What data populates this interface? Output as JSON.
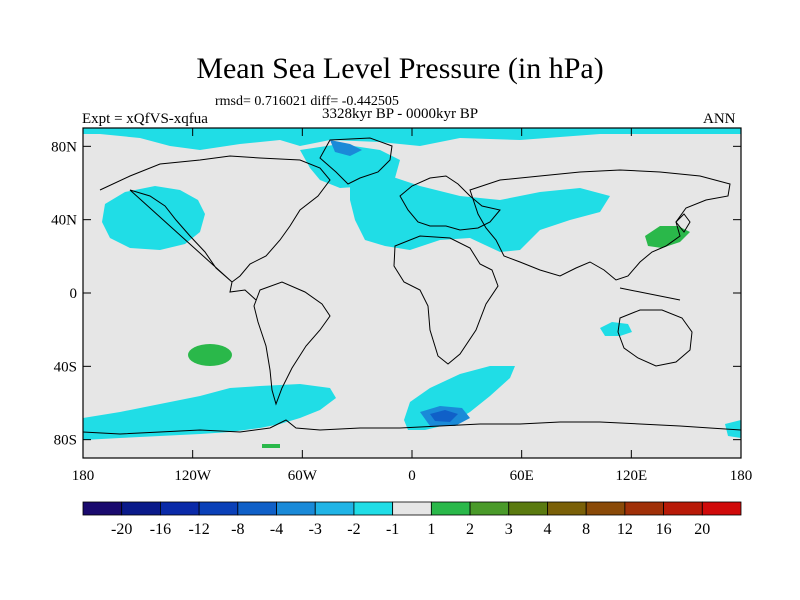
{
  "header": {
    "title": "Mean Sea Level Pressure (in hPa)",
    "stats": "rmsd= 0.716021 diff= -0.442505",
    "experiment": "Expt = xQfVS-xqfua",
    "period": "3328kyr BP - 0000kyr BP",
    "season": "ANN"
  },
  "axes": {
    "lat_labels": [
      "80N",
      "40N",
      "0",
      "40S",
      "80S"
    ],
    "lat_values": [
      80,
      40,
      0,
      -40,
      -80
    ],
    "lon_labels": [
      "180",
      "120W",
      "60W",
      "0",
      "60E",
      "120E",
      "180"
    ],
    "lon_values": [
      -180,
      -120,
      -60,
      0,
      60,
      120,
      180
    ]
  },
  "colorbar": {
    "labels": [
      "-20",
      "-16",
      "-12",
      "-8",
      "-4",
      "-3",
      "-2",
      "-1",
      "1",
      "2",
      "3",
      "4",
      "8",
      "12",
      "16",
      "20"
    ],
    "colors": [
      "#1a0a6e",
      "#0a1a8a",
      "#0a2aa8",
      "#0a40b8",
      "#1060c8",
      "#1a8ad8",
      "#20b4e6",
      "#20dde6",
      "#e6e6e6",
      "#2ab84a",
      "#4a9a2a",
      "#5a7a10",
      "#7a6008",
      "#8a4a08",
      "#a03008",
      "#b81a08",
      "#d00a0a"
    ]
  },
  "map": {
    "land_color": "#e6e6e6",
    "positive_anomaly_color": "#2ab84a",
    "negative_anomaly_color": "#20dde6",
    "strong_negative_color": "#1a8ad8",
    "deep_negative_color": "#1060c8"
  }
}
